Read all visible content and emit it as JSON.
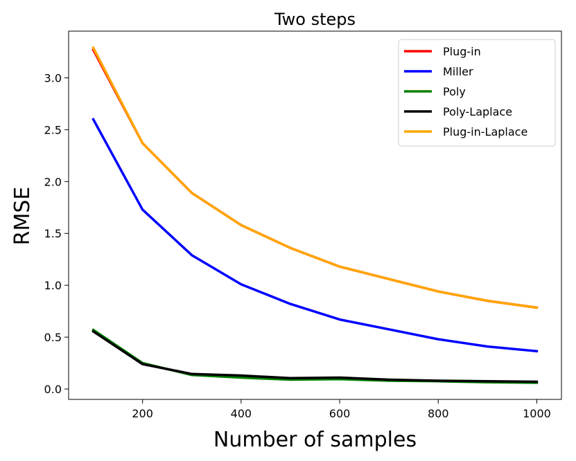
{
  "chart_data": {
    "type": "line",
    "title": "Two steps",
    "xlabel": "Number of samples",
    "ylabel": "RMSE",
    "xlim": [
      50,
      1050
    ],
    "ylim": [
      -0.1,
      3.45
    ],
    "xticks": [
      200,
      400,
      600,
      800,
      1000
    ],
    "yticks": [
      0.0,
      0.5,
      1.0,
      1.5,
      2.0,
      2.5,
      3.0
    ],
    "grid": false,
    "legend_position": "top-right",
    "x": [
      100,
      200,
      300,
      400,
      500,
      600,
      700,
      800,
      900,
      1000
    ],
    "series": [
      {
        "name": "Plug-in",
        "color": "#ff0000",
        "values": [
          3.27,
          2.37,
          1.89,
          1.58,
          1.36,
          1.18,
          1.06,
          0.94,
          0.85,
          0.785
        ]
      },
      {
        "name": "Miller",
        "color": "#0000ff",
        "values": [
          2.6,
          1.73,
          1.29,
          1.01,
          0.82,
          0.67,
          0.575,
          0.48,
          0.41,
          0.365
        ]
      },
      {
        "name": "Poly",
        "color": "#008000",
        "values": [
          0.57,
          0.25,
          0.135,
          0.11,
          0.09,
          0.095,
          0.08,
          0.075,
          0.065,
          0.06
        ]
      },
      {
        "name": "Poly-Laplace",
        "color": "#000000",
        "values": [
          0.555,
          0.24,
          0.145,
          0.13,
          0.105,
          0.11,
          0.09,
          0.08,
          0.075,
          0.07
        ]
      },
      {
        "name": "Plug-in-Laplace",
        "color": "#ffa500",
        "values": [
          3.29,
          2.37,
          1.89,
          1.58,
          1.36,
          1.18,
          1.06,
          0.94,
          0.85,
          0.785
        ]
      }
    ]
  }
}
